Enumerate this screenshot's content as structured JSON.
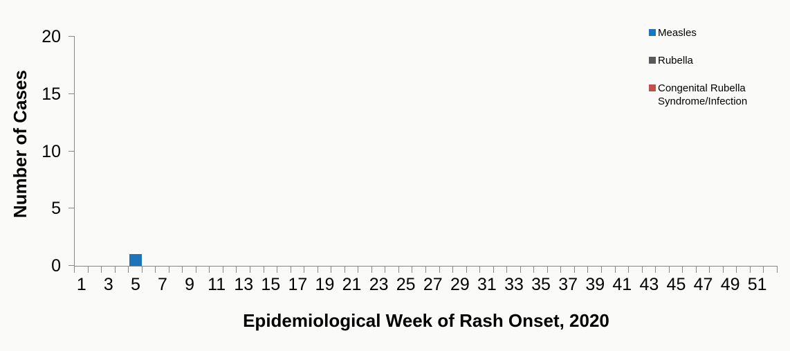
{
  "chart_data": {
    "type": "bar",
    "xlabel": "Epidemiological Week of Rash Onset, 2020",
    "ylabel": "Number of Cases",
    "xlim": [
      0,
      52
    ],
    "ylim": [
      0,
      20
    ],
    "yticks": [
      0,
      5,
      10,
      15,
      20
    ],
    "xtick_minor_every_week": true,
    "xtick_labeled_weeks": [
      1,
      3,
      5,
      7,
      9,
      11,
      13,
      15,
      17,
      19,
      21,
      23,
      25,
      27,
      29,
      31,
      33,
      35,
      37,
      39,
      41,
      43,
      45,
      47,
      49,
      51
    ],
    "grid": false,
    "legend_position": "top-right",
    "series": [
      {
        "name": "Measles",
        "color": "#1C75BB",
        "data": [
          {
            "week": 5,
            "cases": 1
          }
        ]
      },
      {
        "name": "Rubella",
        "color": "#58595B",
        "data": []
      },
      {
        "name": "Congenital Rubella Syndrome/Infection",
        "color": "#C0504D",
        "data": []
      }
    ]
  },
  "colors": {
    "axis": "#868686",
    "text": "#000000",
    "background": "#FAFAF9"
  }
}
